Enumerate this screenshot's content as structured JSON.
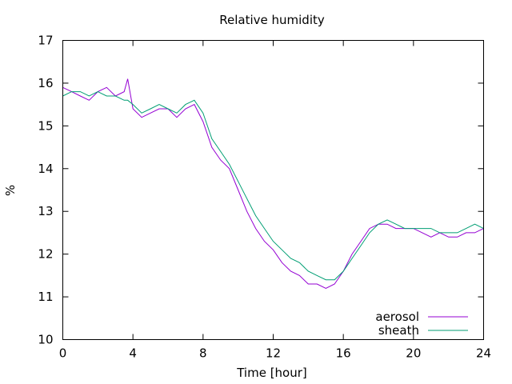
{
  "chart_data": {
    "type": "line",
    "title": "Relative humidity",
    "xlabel": "Time [hour]",
    "ylabel": "%",
    "xlim": [
      0,
      24
    ],
    "ylim": [
      10,
      17
    ],
    "x_ticks": [
      0,
      4,
      8,
      12,
      16,
      20,
      24
    ],
    "y_ticks": [
      10,
      11,
      12,
      13,
      14,
      15,
      16,
      17
    ],
    "grid": false,
    "legend": "bottom-right",
    "x": [
      0,
      0.5,
      1,
      1.5,
      2,
      2.5,
      3,
      3.5,
      3.7,
      4,
      4.5,
      5,
      5.5,
      6,
      6.5,
      7,
      7.5,
      8,
      8.5,
      9,
      9.5,
      10,
      10.5,
      11,
      11.5,
      12,
      12.5,
      13,
      13.5,
      14,
      14.5,
      15,
      15.5,
      16,
      16.5,
      17,
      17.5,
      18,
      18.5,
      19,
      19.5,
      20,
      20.5,
      21,
      21.5,
      22,
      22.5,
      23,
      23.5,
      24
    ],
    "series": [
      {
        "name": "aerosol",
        "color": "#9400d3",
        "values": [
          15.9,
          15.8,
          15.7,
          15.6,
          15.8,
          15.9,
          15.7,
          15.8,
          16.1,
          15.4,
          15.2,
          15.3,
          15.4,
          15.4,
          15.2,
          15.4,
          15.5,
          15.1,
          14.5,
          14.2,
          14.0,
          13.5,
          13.0,
          12.6,
          12.3,
          12.1,
          11.8,
          11.6,
          11.5,
          11.3,
          11.3,
          11.2,
          11.3,
          11.6,
          12.0,
          12.3,
          12.6,
          12.7,
          12.7,
          12.6,
          12.6,
          12.6,
          12.5,
          12.4,
          12.5,
          12.4,
          12.4,
          12.5,
          12.5,
          12.6
        ]
      },
      {
        "name": "sheath",
        "color": "#009e73",
        "values": [
          15.7,
          15.8,
          15.8,
          15.7,
          15.8,
          15.7,
          15.7,
          15.6,
          15.6,
          15.5,
          15.3,
          15.4,
          15.5,
          15.4,
          15.3,
          15.5,
          15.6,
          15.3,
          14.7,
          14.4,
          14.1,
          13.7,
          13.3,
          12.9,
          12.6,
          12.3,
          12.1,
          11.9,
          11.8,
          11.6,
          11.5,
          11.4,
          11.4,
          11.6,
          11.9,
          12.2,
          12.5,
          12.7,
          12.8,
          12.7,
          12.6,
          12.6,
          12.6,
          12.6,
          12.5,
          12.5,
          12.5,
          12.6,
          12.7,
          12.6
        ]
      }
    ]
  }
}
